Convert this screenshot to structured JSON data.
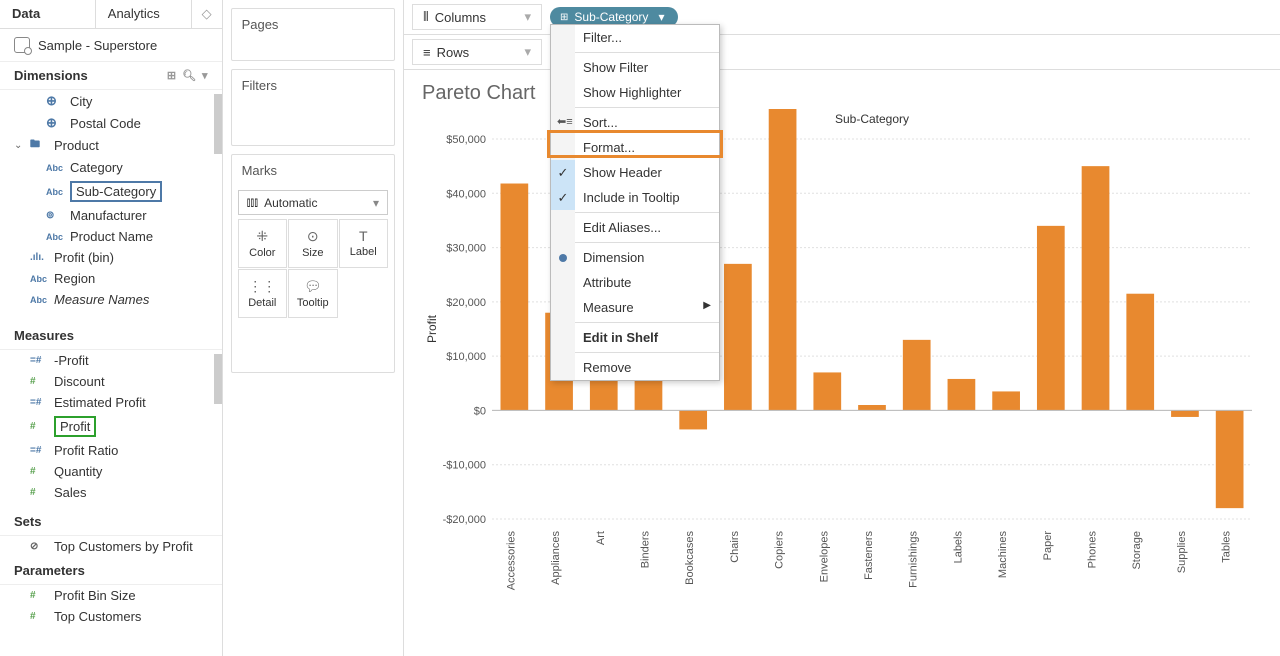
{
  "tabs": {
    "data": "Data",
    "analytics": "Analytics"
  },
  "datasource": "Sample - Superstore",
  "sections": {
    "dimensions": "Dimensions",
    "measures": "Measures",
    "sets": "Sets",
    "parameters": "Parameters"
  },
  "dimensions": {
    "city": "City",
    "postal": "Postal Code",
    "product": "Product",
    "category": "Category",
    "subcategory": "Sub-Category",
    "manufacturer": "Manufacturer",
    "productname": "Product Name",
    "profitbin": "Profit (bin)",
    "region": "Region",
    "measurenames": "Measure Names"
  },
  "measures": {
    "negprofit": "-Profit",
    "discount": "Discount",
    "estprofit": "Estimated Profit",
    "profit": "Profit",
    "profitratio": "Profit Ratio",
    "quantity": "Quantity",
    "sales": "Sales"
  },
  "sets_list": {
    "topcust": "Top Customers by Profit"
  },
  "params_list": {
    "profitbinsize": "Profit Bin Size",
    "topcustomers": "Top Customers"
  },
  "cards": {
    "pages": "Pages",
    "filters": "Filters",
    "marks": "Marks",
    "marktype": "Automatic",
    "color": "Color",
    "size": "Size",
    "label": "Label",
    "detail": "Detail",
    "tooltip": "Tooltip"
  },
  "shelves": {
    "columns": "Columns",
    "rows": "Rows",
    "pill_subcategory": "Sub-Category"
  },
  "chart": {
    "title": "Pareto Chart",
    "axis_title": "Sub-Category",
    "y_label": "Profit",
    "categories": [
      "Accessories",
      "Appliances",
      "Art",
      "Binders",
      "Bookcases",
      "Chairs",
      "Copiers",
      "Envelopes",
      "Fasteners",
      "Furnishings",
      "Labels",
      "Machines",
      "Paper",
      "Phones",
      "Storage",
      "Supplies",
      "Tables"
    ],
    "values": [
      41800,
      18000,
      6500,
      30000,
      -3500,
      27000,
      56000,
      7000,
      1000,
      13000,
      5800,
      3500,
      34000,
      45000,
      21500,
      -1200,
      -18000
    ],
    "bar_color": "#e8892f",
    "ylim": [
      -20000,
      50000
    ],
    "ytick_step": 10000,
    "grid_color": "#e0e0e0",
    "background": "#ffffff",
    "label_fontsize": 11
  },
  "context_menu": {
    "filter": "Filter...",
    "show_filter": "Show Filter",
    "show_highlighter": "Show Highlighter",
    "sort": "Sort...",
    "format": "Format...",
    "show_header": "Show Header",
    "include_tooltip": "Include in Tooltip",
    "edit_aliases": "Edit Aliases...",
    "dimension": "Dimension",
    "attribute": "Attribute",
    "measure": "Measure",
    "edit_in_shelf": "Edit in Shelf",
    "remove": "Remove"
  }
}
